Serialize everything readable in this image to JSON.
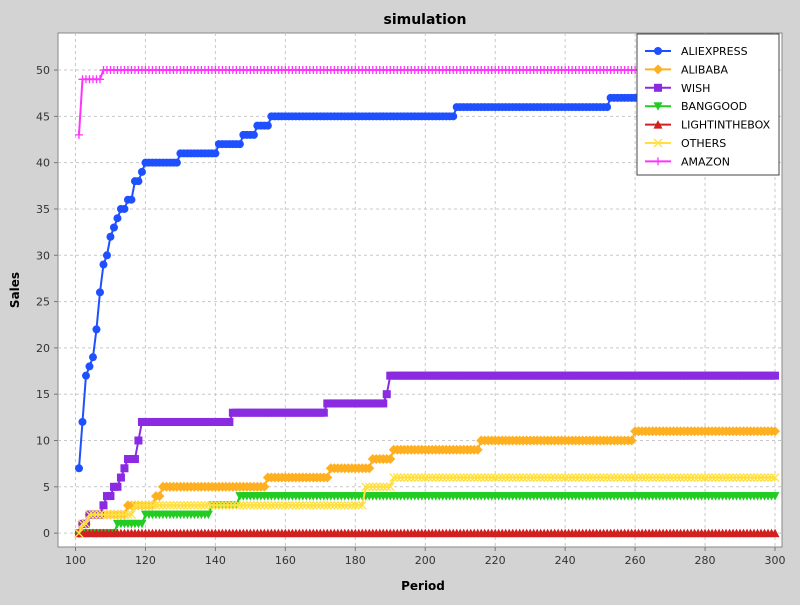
{
  "chart_data": {
    "type": "line",
    "title": "simulation",
    "xlabel": "Period",
    "ylabel": "Sales",
    "xlim": [
      95,
      302
    ],
    "ylim": [
      -1.5,
      54
    ],
    "x_ticks": [
      "100",
      "120",
      "140",
      "160",
      "180",
      "200",
      "220",
      "240",
      "260",
      "280",
      "300"
    ],
    "y_ticks": [
      "0",
      "5",
      "10",
      "15",
      "20",
      "25",
      "30",
      "35",
      "40",
      "45",
      "50"
    ],
    "grid": true,
    "legend_position": "top-right",
    "x_start": 101,
    "x_end": 300,
    "series": [
      {
        "name": "ALIEXPRESS",
        "color": "#1f50ff",
        "marker": "circle",
        "steps": [
          [
            101,
            7
          ],
          [
            102,
            12
          ],
          [
            103,
            17
          ],
          [
            104,
            18
          ],
          [
            105,
            19
          ],
          [
            106,
            22
          ],
          [
            107,
            26
          ],
          [
            108,
            29
          ],
          [
            109,
            30
          ],
          [
            110,
            32
          ],
          [
            111,
            33
          ],
          [
            112,
            34
          ],
          [
            113,
            35
          ],
          [
            115,
            36
          ],
          [
            117,
            38
          ],
          [
            119,
            39
          ],
          [
            120,
            40
          ],
          [
            130,
            41
          ],
          [
            141,
            42
          ],
          [
            148,
            43
          ],
          [
            152,
            44
          ],
          [
            156,
            45
          ],
          [
            209,
            46
          ],
          [
            253,
            47
          ]
        ]
      },
      {
        "name": "ALIBABA",
        "color": "#ffb020",
        "marker": "diamond",
        "steps": [
          [
            101,
            0
          ],
          [
            102,
            1
          ],
          [
            104,
            2
          ],
          [
            115,
            3
          ],
          [
            123,
            4
          ],
          [
            125,
            5
          ],
          [
            155,
            6
          ],
          [
            173,
            7
          ],
          [
            185,
            8
          ],
          [
            191,
            9
          ],
          [
            216,
            10
          ],
          [
            260,
            11
          ]
        ]
      },
      {
        "name": "WISH",
        "color": "#8a2be2",
        "marker": "square",
        "steps": [
          [
            101,
            0
          ],
          [
            102,
            1
          ],
          [
            104,
            2
          ],
          [
            108,
            3
          ],
          [
            109,
            4
          ],
          [
            111,
            5
          ],
          [
            113,
            6
          ],
          [
            114,
            7
          ],
          [
            115,
            8
          ],
          [
            118,
            10
          ],
          [
            119,
            12
          ],
          [
            145,
            13
          ],
          [
            172,
            14
          ],
          [
            189,
            15
          ],
          [
            190,
            17
          ]
        ]
      },
      {
        "name": "BANGGOOD",
        "color": "#22cc22",
        "marker": "triangle-down",
        "steps": [
          [
            101,
            0
          ],
          [
            112,
            1
          ],
          [
            120,
            2
          ],
          [
            139,
            3
          ],
          [
            147,
            4
          ]
        ]
      },
      {
        "name": "LIGHTINTHEBOX",
        "color": "#d02020",
        "marker": "triangle-up",
        "steps": [
          [
            101,
            0
          ]
        ]
      },
      {
        "name": "OTHERS",
        "color": "#ffe040",
        "marker": "x",
        "steps": [
          [
            101,
            0
          ],
          [
            102,
            1
          ],
          [
            104,
            2
          ],
          [
            117,
            3
          ],
          [
            183,
            5
          ],
          [
            191,
            6
          ]
        ]
      },
      {
        "name": "AMAZON",
        "color": "#ff33ff",
        "marker": "plus",
        "steps": [
          [
            101,
            43
          ],
          [
            102,
            49
          ],
          [
            108,
            50
          ]
        ]
      }
    ]
  }
}
